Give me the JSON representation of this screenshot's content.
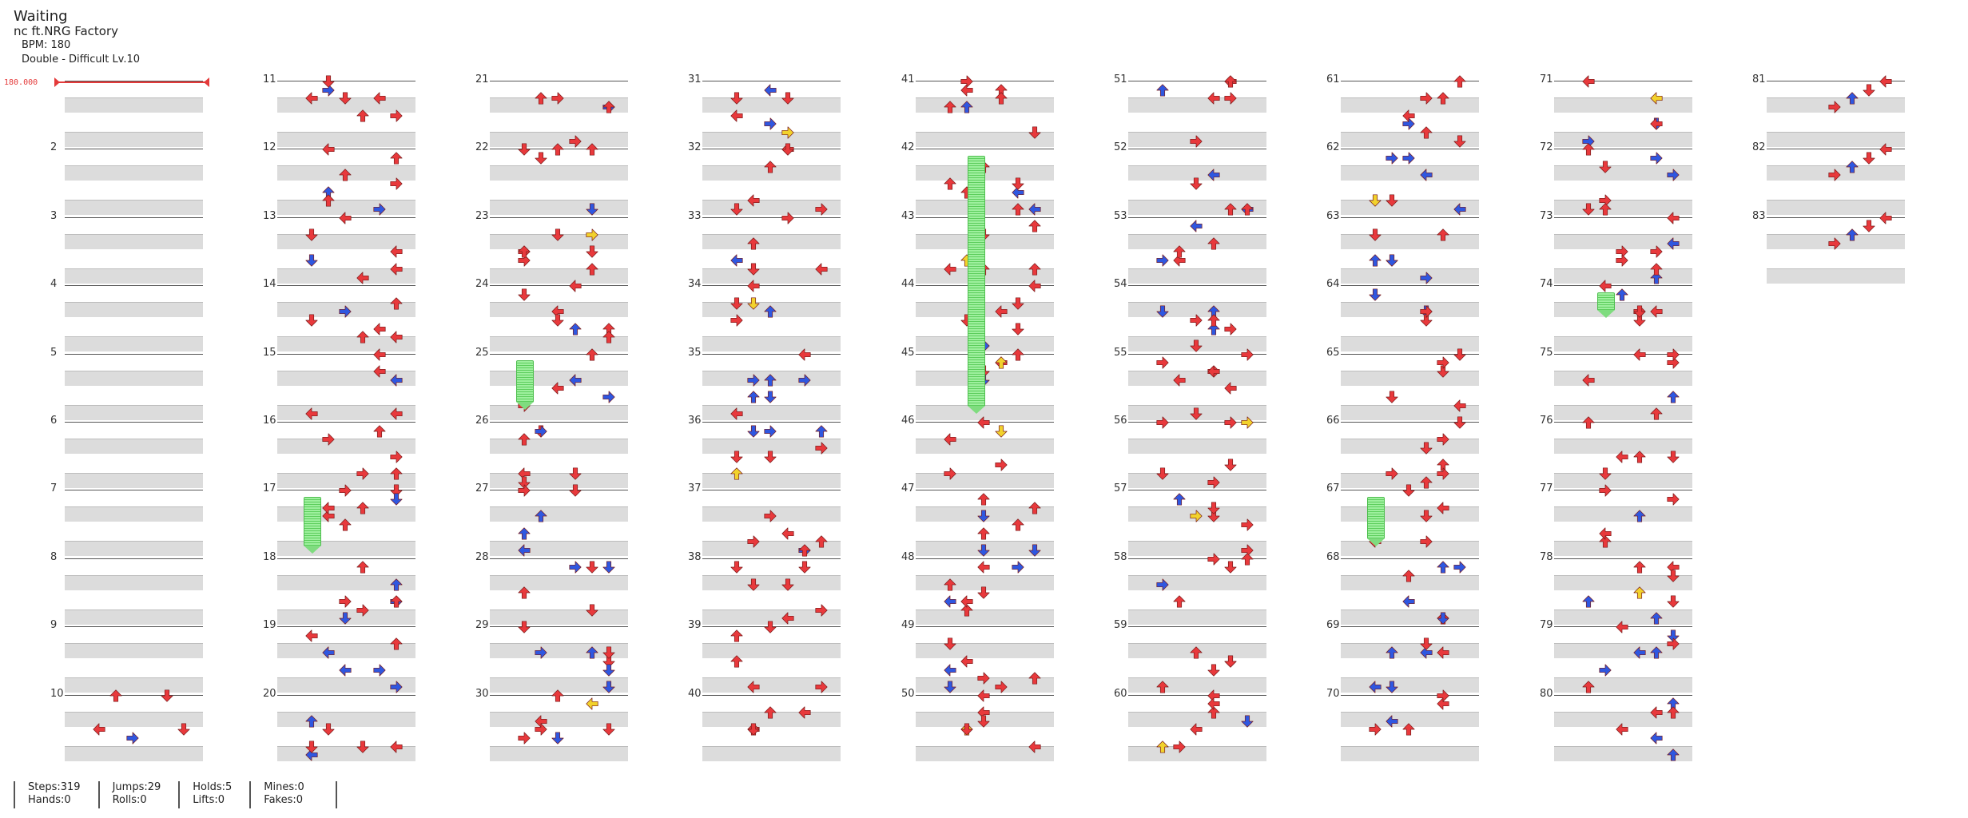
{
  "header": {
    "status": "Waiting",
    "song": "nc ft.NRG Factory",
    "bpm": "BPM: 180",
    "difficulty": "Double - Difficult  Lv.10"
  },
  "bpm_marker": "180.000",
  "measure_numbers": [
    "2",
    "3",
    "4",
    "5",
    "6",
    "7",
    "8",
    "9",
    "10",
    "11",
    "12",
    "13",
    "14",
    "15",
    "16",
    "17",
    "18",
    "19",
    "20",
    "21",
    "22",
    "23",
    "24",
    "25",
    "26",
    "27",
    "28",
    "29",
    "30",
    "31",
    "32",
    "33",
    "34",
    "35",
    "36",
    "37",
    "38",
    "39",
    "40",
    "41",
    "42",
    "43",
    "44",
    "45",
    "46",
    "47",
    "48",
    "49",
    "50",
    "51",
    "52",
    "53",
    "54",
    "55",
    "56",
    "57",
    "58",
    "59",
    "60",
    "61",
    "62",
    "63",
    "64",
    "65",
    "66",
    "67",
    "68",
    "69",
    "70",
    "71",
    "72",
    "73",
    "74",
    "75",
    "76",
    "77",
    "78",
    "79",
    "80",
    "81",
    "82",
    "83"
  ],
  "stats": {
    "steps": "Steps:319",
    "hands": "Hands:0",
    "jumps": "Jumps:29",
    "rolls": "Rolls:0",
    "holds": "Holds:5",
    "lifts": "Lifts:0",
    "mines": "Mines:0",
    "fakes": "Fakes:0"
  },
  "colors": {
    "quarter": "#e8393c",
    "eighth": "#2f57e0",
    "sixteenth": "#f2d22c",
    "hold": "#6fd86f"
  },
  "arrow_icons": [
    "arrow-left-icon",
    "arrow-down-icon",
    "arrow-up-icon",
    "arrow-right-icon"
  ]
}
